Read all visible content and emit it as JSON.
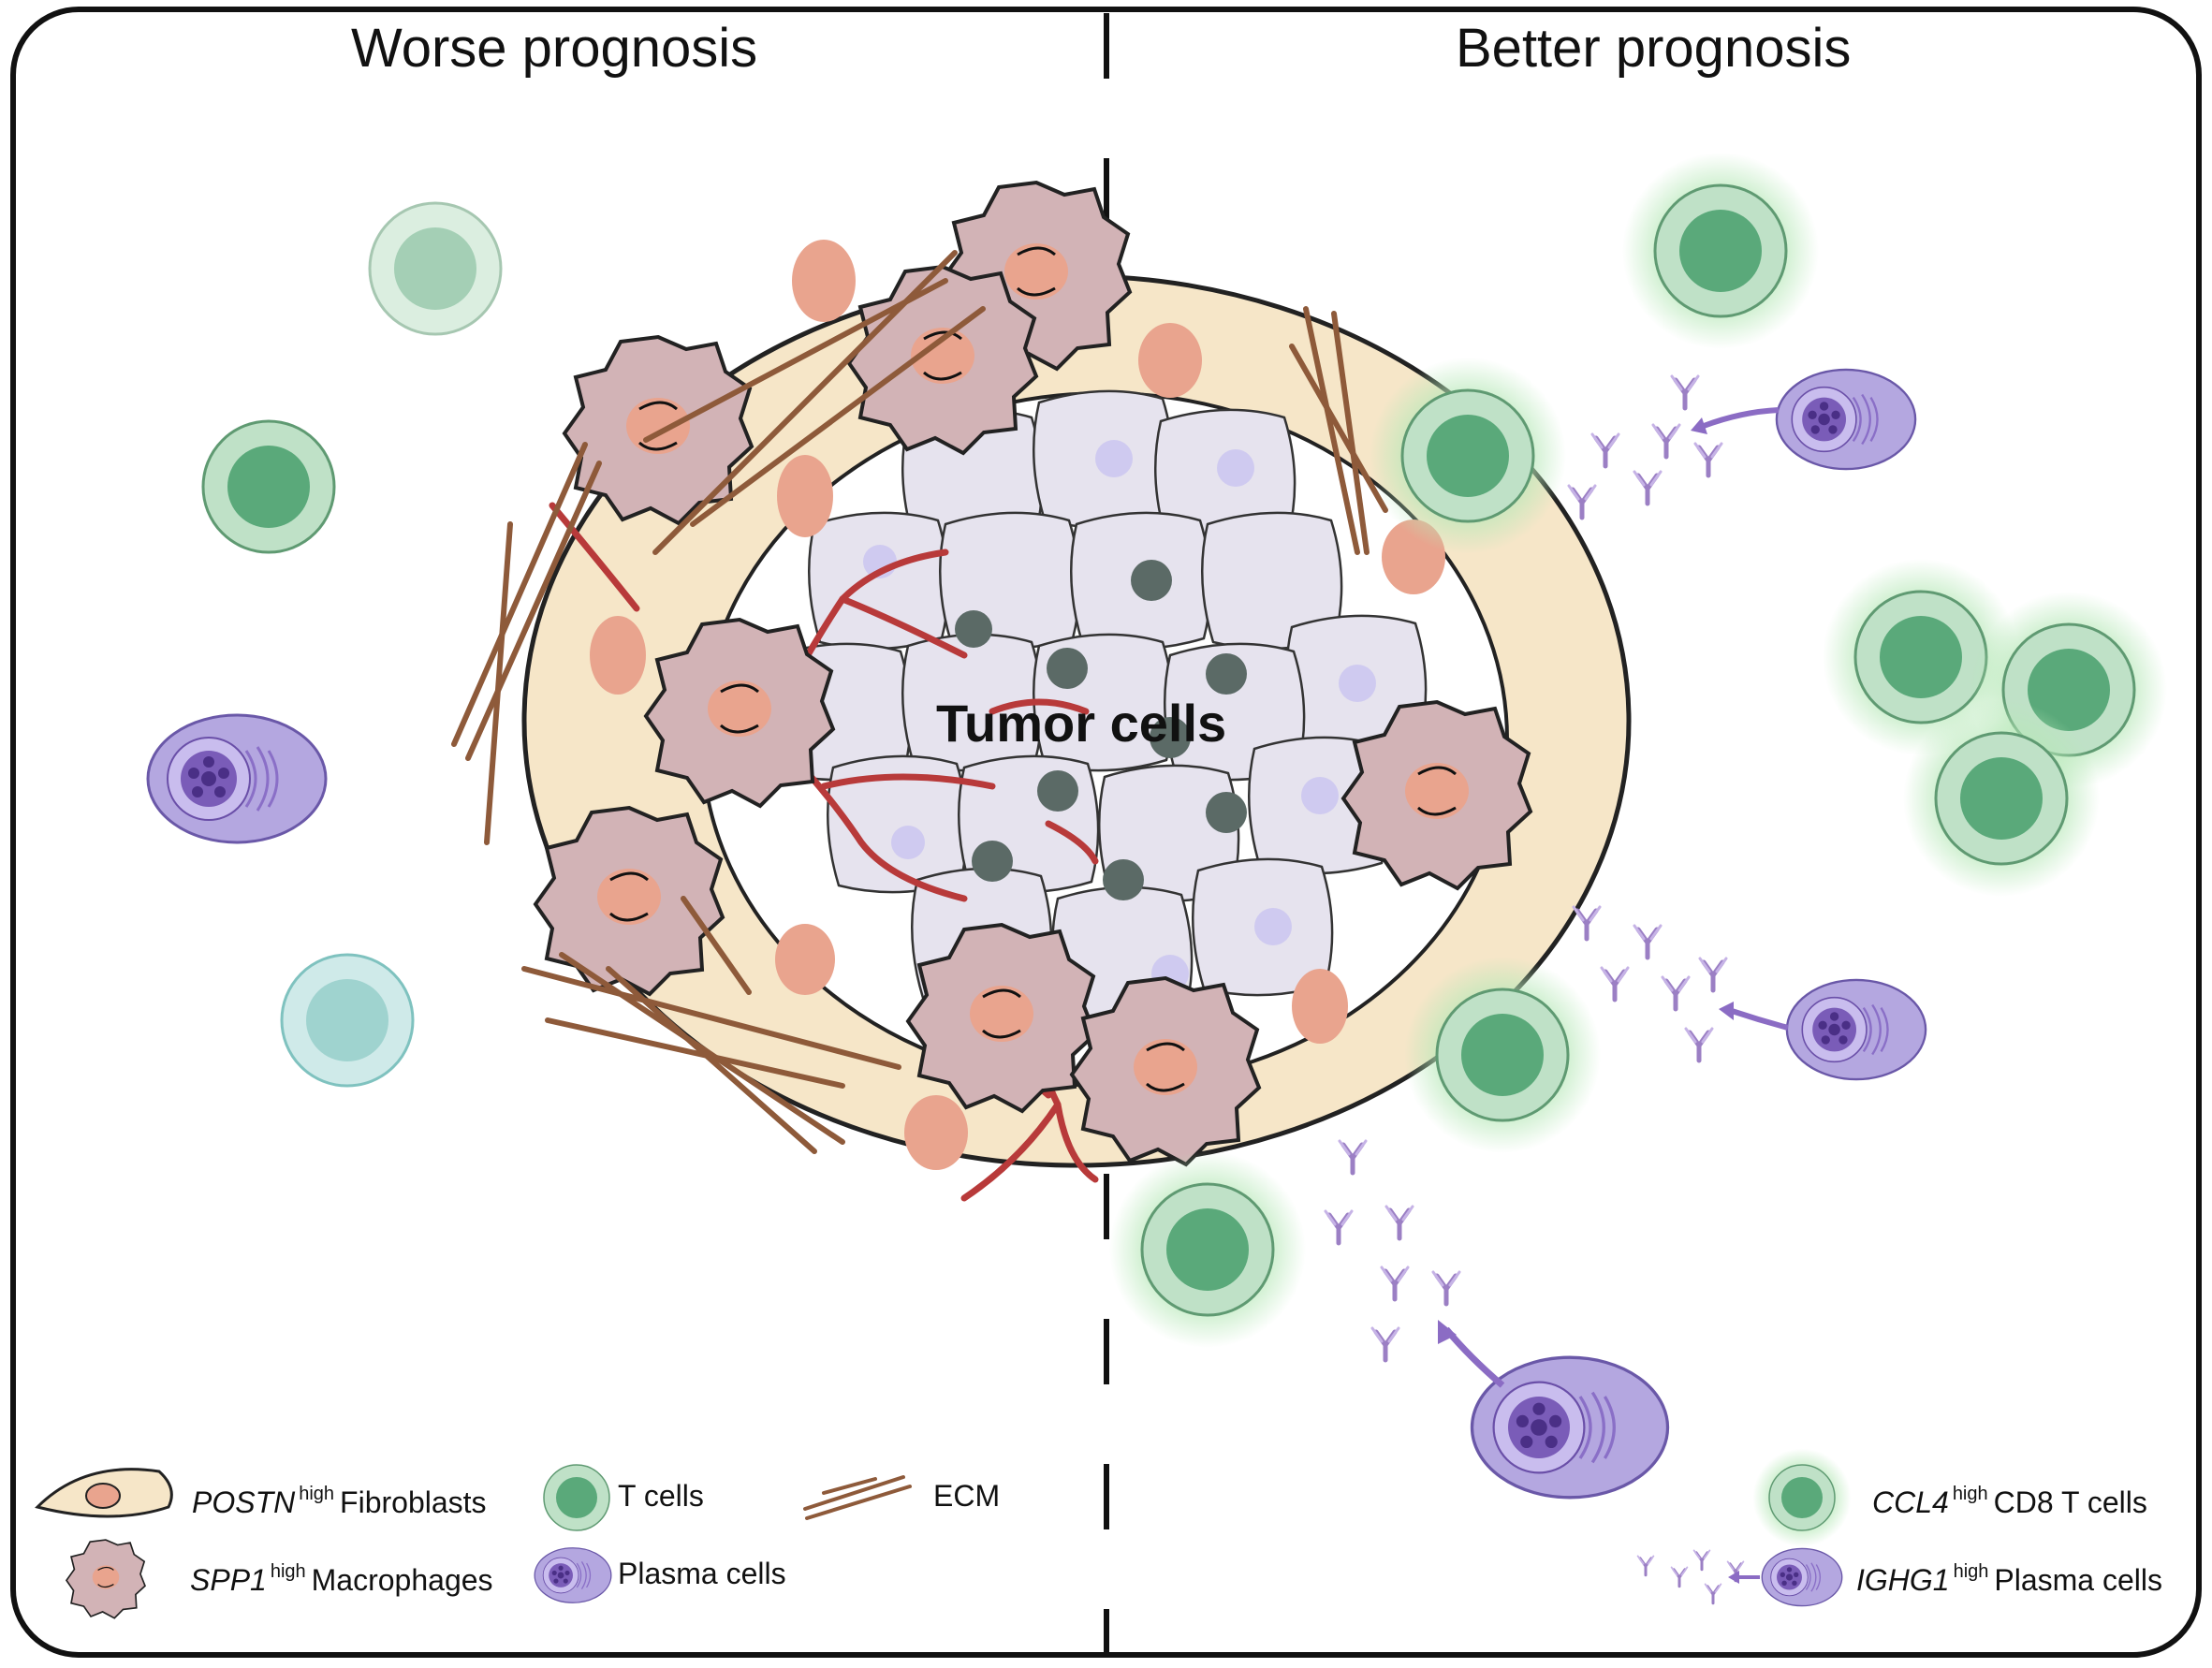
{
  "titles": {
    "left": "Worse prognosis",
    "right": "Better prognosis"
  },
  "center_label": "Tumor cells",
  "legend_left": {
    "fibroblasts": {
      "gene": "POSTN",
      "sup": "high",
      "name": "Fibroblasts"
    },
    "macrophages": {
      "gene": "SPP1",
      "sup": "high",
      "name": "Macrophages"
    },
    "t_cells": {
      "name": "T cells"
    },
    "plasma_cells": {
      "name": "Plasma cells"
    },
    "ecm": {
      "name": "ECM"
    }
  },
  "legend_right": {
    "cd8": {
      "gene": "CCL4",
      "sup": "high",
      "name": "CD8 T cells"
    },
    "plasma": {
      "gene": "IGHG1",
      "sup": "high",
      "name": "Plasma cells"
    }
  },
  "colors": {
    "fibroblast": "#f6e6c8",
    "fibroblast_nucleus": "#e9a48e",
    "macrophage": "#d2b3b6",
    "tcell": "#8cc7a0",
    "tcell_nucleus": "#5aa97a",
    "plasma": "#a99ad6",
    "plasma_nucleus": "#6a4fa8",
    "ecm": "#8e5a3a",
    "vessel": "#b83a3a",
    "tumor_cell": "#e6e3ee",
    "tumor_nucleus": "#5b6a66",
    "antibody": "#9b7fc4",
    "glow": "#b7e8b8"
  },
  "icons": [
    "fibroblast-icon",
    "macrophage-icon",
    "t-cell-icon",
    "plasma-cell-icon",
    "ecm-icon",
    "antibody-icon",
    "glowing-t-cell-icon"
  ]
}
